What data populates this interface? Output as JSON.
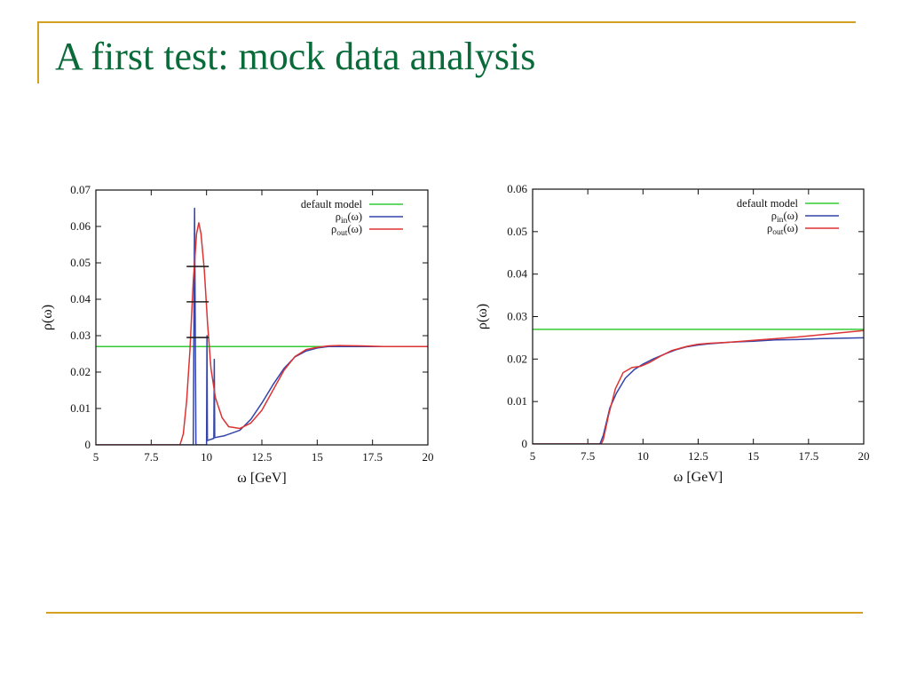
{
  "slide": {
    "title": "A first test: mock data analysis"
  },
  "chart_data": [
    {
      "type": "line",
      "xlabel": "ω [GeV]",
      "ylabel": "ρ(ω)",
      "xlim": [
        5,
        20
      ],
      "ylim": [
        0,
        0.07
      ],
      "xticks": [
        5,
        7.5,
        10,
        12.5,
        15,
        17.5,
        20
      ],
      "xtick_labels": [
        "5",
        "7.5",
        "10",
        "12.5",
        "15",
        "17.5",
        "20"
      ],
      "yticks": [
        0,
        0.01,
        0.02,
        0.03,
        0.04,
        0.05,
        0.06,
        0.07
      ],
      "ytick_labels": [
        "0",
        "0.01",
        "0.02",
        "0.03",
        "0.04",
        "0.05",
        "0.06",
        "0.07"
      ],
      "legend_position": "top-right",
      "series": [
        {
          "name": "default model",
          "color": "#33cc33",
          "points": [
            [
              5,
              0.027
            ],
            [
              20,
              0.027
            ]
          ]
        },
        {
          "name": "ρin(ω)",
          "name_base": "ρ",
          "name_sub": "in",
          "name_tail": "(ω)",
          "color": "#3344aa",
          "points": [
            [
              5,
              0
            ],
            [
              9.4,
              0
            ],
            [
              9.46,
              0.065
            ],
            [
              9.52,
              0
            ],
            [
              9.6,
              0
            ],
            [
              10,
              0
            ],
            [
              10.02,
              0.03
            ],
            [
              10.04,
              0.0012
            ],
            [
              10.33,
              0.0018
            ],
            [
              10.35,
              0.0235
            ],
            [
              10.37,
              0.002
            ],
            [
              10.8,
              0.0025
            ],
            [
              11.5,
              0.004
            ],
            [
              12,
              0.007
            ],
            [
              12.5,
              0.0115
            ],
            [
              13,
              0.0165
            ],
            [
              13.5,
              0.021
            ],
            [
              14,
              0.0242
            ],
            [
              14.5,
              0.0258
            ],
            [
              15,
              0.0266
            ],
            [
              15.5,
              0.027
            ],
            [
              16,
              0.027
            ],
            [
              17,
              0.027
            ],
            [
              20,
              0.027
            ]
          ]
        },
        {
          "name": "ρout(ω)",
          "name_base": "ρ",
          "name_sub": "out",
          "name_tail": "(ω)",
          "color": "#dd3333",
          "points": [
            [
              5,
              0
            ],
            [
              8.8,
              0
            ],
            [
              8.95,
              0.003
            ],
            [
              9.1,
              0.012
            ],
            [
              9.25,
              0.026
            ],
            [
              9.4,
              0.045
            ],
            [
              9.55,
              0.058
            ],
            [
              9.65,
              0.061
            ],
            [
              9.75,
              0.058
            ],
            [
              9.9,
              0.048
            ],
            [
              10.05,
              0.033
            ],
            [
              10.2,
              0.021
            ],
            [
              10.4,
              0.013
            ],
            [
              10.7,
              0.0075
            ],
            [
              11,
              0.005
            ],
            [
              11.5,
              0.0045
            ],
            [
              12,
              0.006
            ],
            [
              12.5,
              0.0095
            ],
            [
              13,
              0.015
            ],
            [
              13.5,
              0.0205
            ],
            [
              14,
              0.0243
            ],
            [
              14.5,
              0.0262
            ],
            [
              15,
              0.0268
            ],
            [
              15.5,
              0.0272
            ],
            [
              16,
              0.0273
            ],
            [
              17,
              0.0272
            ],
            [
              18,
              0.027
            ],
            [
              20,
              0.027
            ]
          ]
        }
      ],
      "error_bars": [
        {
          "x": 9.6,
          "y": 0.0295,
          "xerr": 0.5
        },
        {
          "x": 9.6,
          "y": 0.0393,
          "xerr": 0.5
        },
        {
          "x": 9.6,
          "y": 0.049,
          "xerr": 0.5
        }
      ]
    },
    {
      "type": "line",
      "xlabel": "ω [GeV]",
      "ylabel": "ρ(ω)",
      "xlim": [
        5,
        20
      ],
      "ylim": [
        0,
        0.06
      ],
      "xticks": [
        5,
        7.5,
        10,
        12.5,
        15,
        17.5,
        20
      ],
      "xtick_labels": [
        "5",
        "7.5",
        "10",
        "12.5",
        "15",
        "17.5",
        "20"
      ],
      "yticks": [
        0,
        0.01,
        0.02,
        0.03,
        0.04,
        0.05,
        0.06
      ],
      "ytick_labels": [
        "0",
        "0.01",
        "0.02",
        "0.03",
        "0.04",
        "0.05",
        "0.06"
      ],
      "legend_position": "top-right",
      "series": [
        {
          "name": "default model",
          "color": "#33cc33",
          "points": [
            [
              5,
              0.027
            ],
            [
              20,
              0.027
            ]
          ]
        },
        {
          "name": "ρin(ω)",
          "name_base": "ρ",
          "name_sub": "in",
          "name_tail": "(ω)",
          "color": "#3344aa",
          "points": [
            [
              5,
              0
            ],
            [
              8.05,
              0
            ],
            [
              8.2,
              0.002
            ],
            [
              8.5,
              0.0085
            ],
            [
              8.8,
              0.012
            ],
            [
              9.2,
              0.0155
            ],
            [
              9.6,
              0.0175
            ],
            [
              10,
              0.0188
            ],
            [
              10.5,
              0.0201
            ],
            [
              11,
              0.0212
            ],
            [
              11.5,
              0.0222
            ],
            [
              12,
              0.0229
            ],
            [
              12.5,
              0.0233
            ],
            [
              13,
              0.0236
            ],
            [
              14,
              0.024
            ],
            [
              15,
              0.0242
            ],
            [
              16,
              0.0245
            ],
            [
              17,
              0.0246
            ],
            [
              18,
              0.0248
            ],
            [
              19,
              0.0249
            ],
            [
              20,
              0.025
            ]
          ]
        },
        {
          "name": "ρout(ω)",
          "name_base": "ρ",
          "name_sub": "out",
          "name_tail": "(ω)",
          "color": "#dd3333",
          "points": [
            [
              5,
              0
            ],
            [
              8.1,
              0
            ],
            [
              8.2,
              0.001
            ],
            [
              8.45,
              0.007
            ],
            [
              8.75,
              0.013
            ],
            [
              9.1,
              0.0168
            ],
            [
              9.5,
              0.018
            ],
            [
              9.9,
              0.0183
            ],
            [
              10.3,
              0.0192
            ],
            [
              10.8,
              0.0207
            ],
            [
              11.3,
              0.022
            ],
            [
              12,
              0.023
            ],
            [
              12.5,
              0.0235
            ],
            [
              13,
              0.0237
            ],
            [
              14,
              0.024
            ],
            [
              15,
              0.0244
            ],
            [
              16,
              0.0248
            ],
            [
              17,
              0.0252
            ],
            [
              18,
              0.0257
            ],
            [
              19,
              0.0262
            ],
            [
              20,
              0.0267
            ]
          ]
        }
      ]
    }
  ]
}
